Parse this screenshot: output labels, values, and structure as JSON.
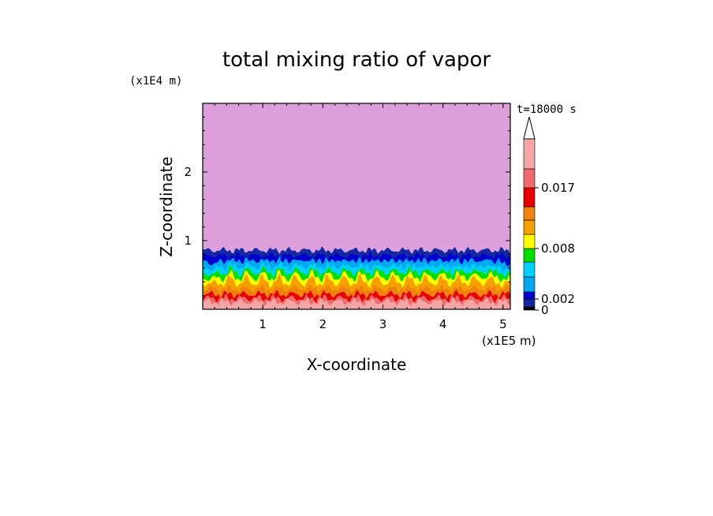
{
  "chart_data": {
    "type": "heatmap",
    "title": "total mixing ratio of vapor",
    "xlabel": "X-coordinate",
    "ylabel": "Z-coordinate",
    "x_scale_label": "(x1E5 m)",
    "y_scale_label": "(x1E4 m)",
    "time_label": "t=18000 s",
    "xlim": [
      0,
      5.12
    ],
    "ylim": [
      0,
      3.0
    ],
    "xticks": [
      "1",
      "2",
      "3",
      "4",
      "5"
    ],
    "xtick_values": [
      1,
      2,
      3,
      4,
      5
    ],
    "yticks": [
      "1",
      "2"
    ],
    "ytick_values": [
      1,
      2
    ],
    "background_color": "#dda0dd",
    "levels": [
      {
        "upper_z": 0.11,
        "color": "#f4a6a6"
      },
      {
        "upper_z": 0.16,
        "color": "#ee6b6b"
      },
      {
        "upper_z": 0.22,
        "color": "#e60000"
      },
      {
        "upper_z": 0.3,
        "color": "#f0820f"
      },
      {
        "upper_z": 0.38,
        "color": "#f5a000"
      },
      {
        "upper_z": 0.45,
        "color": "#ffff00"
      },
      {
        "upper_z": 0.52,
        "color": "#00e000"
      },
      {
        "upper_z": 0.6,
        "color": "#00d0ff"
      },
      {
        "upper_z": 0.68,
        "color": "#00a8f0"
      },
      {
        "upper_z": 0.78,
        "color": "#0000d0"
      },
      {
        "upper_z": 0.86,
        "color": "#1428a0"
      }
    ],
    "colorbar": {
      "colors": [
        "#000000",
        "#1428a0",
        "#0000d0",
        "#00a8f0",
        "#00d0ff",
        "#00e000",
        "#ffff00",
        "#f5a000",
        "#f0820f",
        "#e60000",
        "#ee6b6b",
        "#f4a6a6"
      ],
      "tick_labels": [
        "0",
        "0.002",
        "0.008",
        "0.017"
      ],
      "tick_indices": [
        0,
        2,
        6,
        10
      ],
      "extend": "max"
    }
  }
}
